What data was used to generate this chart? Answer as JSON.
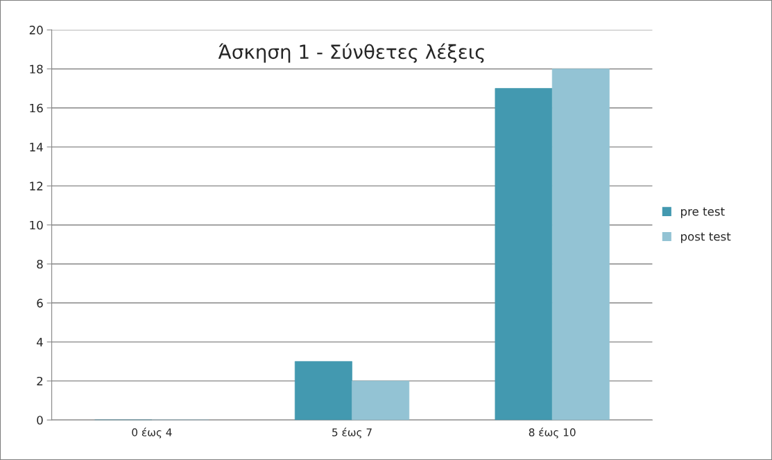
{
  "chart_data": {
    "type": "bar",
    "title": "Άσκηση 1 - Σύνθετες λέξεις",
    "categories": [
      "0 έως 4",
      "5 έως 7",
      "8 έως 10"
    ],
    "series": [
      {
        "name": "pre test",
        "color": "#4399b0",
        "values": [
          0,
          3,
          17
        ]
      },
      {
        "name": "post test",
        "color": "#93c3d4",
        "values": [
          0,
          2,
          18
        ]
      }
    ],
    "ylim": [
      0,
      20
    ],
    "yticks": [
      0,
      2,
      4,
      6,
      8,
      10,
      12,
      14,
      16,
      18,
      20
    ],
    "grid": "y",
    "legend": "right"
  }
}
